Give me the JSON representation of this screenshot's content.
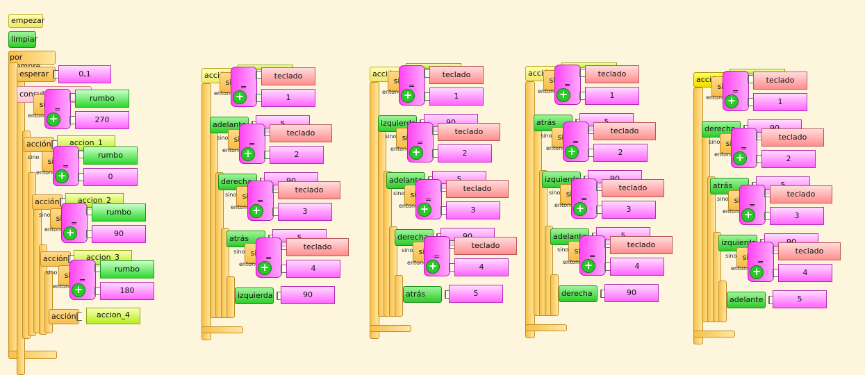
{
  "main": {
    "hat_label": "empezar",
    "clear_label": "limpiar",
    "loop_label": "por siempre",
    "wait_label": "esperar",
    "wait_value": "0,1",
    "query_label": "consulta",
    "if_label": "si",
    "then_label": "entonces",
    "else_label": "sino",
    "eq_label": "=",
    "action_label": "acción",
    "var_rumbo": "rumbo",
    "values": [
      "270",
      "0",
      "90",
      "180"
    ],
    "actions": [
      "accion_1",
      "accion_2",
      "accion_3",
      "accion_4"
    ]
  },
  "common": {
    "action_label": "acción",
    "if_label": "si",
    "then_label": "entonces",
    "else_label": "sino",
    "eq_label": "=",
    "plus_label": "+",
    "keyboard_label": "teclado"
  },
  "handlers": [
    {
      "keys": [
        "1",
        "2",
        "3",
        "4"
      ],
      "moves": [
        {
          "cmd": "adelante",
          "val": "5"
        },
        {
          "cmd": "derecha",
          "val": "90"
        },
        {
          "cmd": "atrás",
          "val": "5"
        },
        {
          "cmd": "izquierda",
          "val": "90"
        }
      ]
    },
    {
      "keys": [
        "1",
        "2",
        "3",
        "4"
      ],
      "moves": [
        {
          "cmd": "izquierda",
          "val": "90"
        },
        {
          "cmd": "adelante",
          "val": "5"
        },
        {
          "cmd": "derecha",
          "val": "90"
        },
        {
          "cmd": "atrás",
          "val": "5"
        }
      ]
    },
    {
      "keys": [
        "1",
        "2",
        "3",
        "4"
      ],
      "moves": [
        {
          "cmd": "atrás",
          "val": "5"
        },
        {
          "cmd": "izquierda",
          "val": "90"
        },
        {
          "cmd": "adelante",
          "val": "5"
        },
        {
          "cmd": "derecha",
          "val": "90"
        }
      ]
    },
    {
      "keys": [
        "1",
        "2",
        "3",
        "4"
      ],
      "moves": [
        {
          "cmd": "derecha",
          "val": "90"
        },
        {
          "cmd": "atrás",
          "val": "5"
        },
        {
          "cmd": "izquierda",
          "val": "90"
        },
        {
          "cmd": "adelante",
          "val": "5"
        }
      ]
    }
  ],
  "colors": {
    "background": "#fdf6dc",
    "hat": "#f2e86a",
    "control": "#f7bf4c",
    "command": "#2ecb2a",
    "operator": "#ff44f2",
    "keyboard": "#ff8e8e",
    "number": "#ff66ff",
    "variable": "#2fd82f",
    "action_name": "#b8ec1c"
  }
}
